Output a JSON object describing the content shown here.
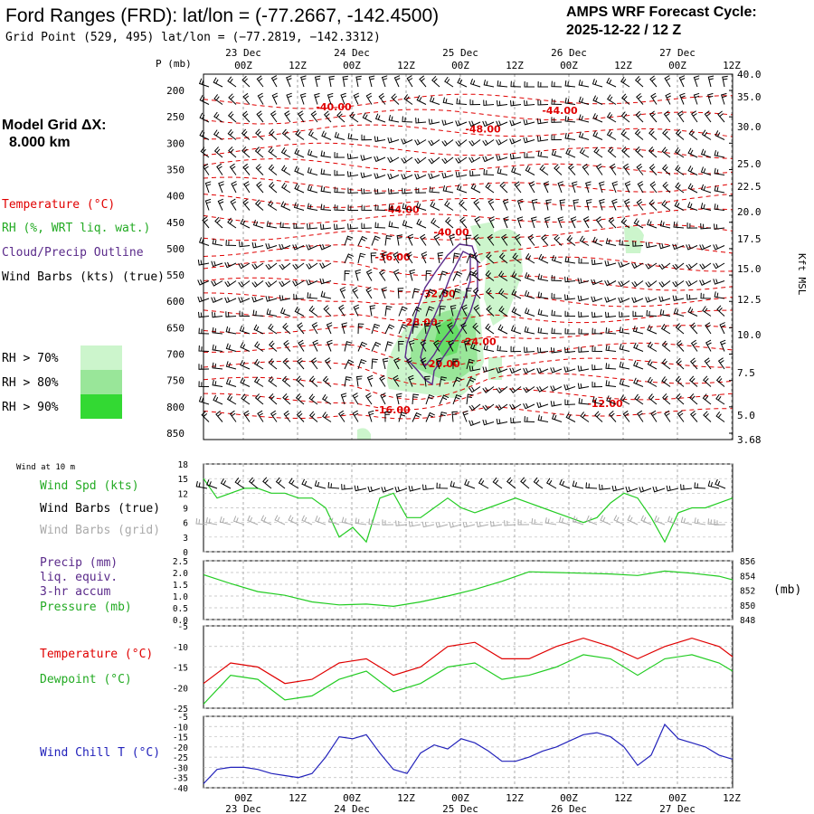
{
  "header": {
    "title": "Ford Ranges (FRD):  lat/lon = (-77.2667, -142.4500)",
    "grid_point": "Grid Point (529, 495) lat/lon = (−77.2819, −142.3312)",
    "cycle_label": "AMPS WRF Forecast Cycle:",
    "cycle_value": "2025-12-22 / 12  Z"
  },
  "left_panel": {
    "model_grid_label": "Model Grid ΔX:",
    "model_grid_value": "8.000 km",
    "legend_temperature": "Temperature (°C)",
    "legend_rh": "RH (%, WRT liq. wat.)",
    "legend_cloud": "Cloud/Precip Outline",
    "legend_wind": "Wind Barbs (kts) (true)",
    "rh_levels": [
      "RH > 70%",
      "RH > 80%",
      "RH > 90%"
    ]
  },
  "colors": {
    "temperature": "#e00000",
    "dewpoint": "#22cc22",
    "cloud": "#5a2a8a",
    "windchill": "#2222bb",
    "rh70": "#ccf5cc",
    "rh80": "#99e699",
    "rh90": "#33d933",
    "grey_barb": "#aaaaaa"
  },
  "time_axis": {
    "top_dates": [
      "23 Dec",
      "24 Dec",
      "25 Dec",
      "26 Dec",
      "27 Dec"
    ],
    "bottom_dates": [
      "23 Dec",
      "24 Dec",
      "25 Dec",
      "26 Dec",
      "27 Dec"
    ],
    "hours": [
      "00Z",
      "12Z",
      "00Z",
      "12Z",
      "00Z",
      "12Z",
      "00Z",
      "12Z",
      "00Z",
      "12Z"
    ]
  },
  "chart_data": [
    {
      "type": "heatmap",
      "name": "cross-section",
      "ylabel": "P (mb)",
      "y2label": "Kft MSL",
      "pressure_ticks": [
        "200",
        "250",
        "300",
        "350",
        "400",
        "450",
        "500",
        "550",
        "600",
        "650",
        "700",
        "750",
        "800",
        "850"
      ],
      "height_ticks": [
        "40.0",
        "35.0",
        "30.0",
        "25.0",
        "22.5",
        "20.0",
        "17.5",
        "15.0",
        "12.5",
        "10.0",
        "7.5",
        "5.0",
        "3.68"
      ],
      "isotherm_labels": [
        {
          "text": "-40.00",
          "t": 20,
          "p": 238
        },
        {
          "text": "-44.00",
          "t": 70,
          "p": 245
        },
        {
          "text": "-48.00",
          "t": 53,
          "p": 280
        },
        {
          "text": "-44.00",
          "t": 35,
          "p": 432
        },
        {
          "text": "-40.00",
          "t": 46,
          "p": 475
        },
        {
          "text": "-36.00",
          "t": 33,
          "p": 522
        },
        {
          "text": "-32.00",
          "t": 43,
          "p": 592
        },
        {
          "text": "-28.00",
          "t": 39,
          "p": 646
        },
        {
          "text": "-24.00",
          "t": 52,
          "p": 683
        },
        {
          "text": "-20.00",
          "t": 44,
          "p": 725
        },
        {
          "text": "-16.00",
          "t": 33,
          "p": 812
        },
        {
          "text": "-12.00",
          "t": 80,
          "p": 800
        }
      ]
    },
    {
      "type": "line",
      "name": "wind-10m",
      "title": "Wind at 10 m",
      "legend": [
        "Wind Spd (kts)",
        "Wind Barbs (true)",
        "Wind Barbs (grid)"
      ],
      "ylim": [
        0,
        18
      ],
      "yticks": [
        "0",
        "3",
        "6",
        "9",
        "12",
        "15",
        "18"
      ],
      "x_hours": [
        0,
        3,
        6,
        9,
        12,
        15,
        18,
        21,
        24,
        27,
        30,
        33,
        36,
        39,
        42,
        45,
        48,
        51,
        54,
        57,
        60,
        63,
        66,
        69,
        72,
        75,
        78,
        81,
        84,
        87,
        90,
        93,
        96,
        99,
        102,
        105,
        108,
        111,
        114,
        117
      ],
      "values": [
        15,
        11,
        12,
        13,
        13,
        12,
        12,
        11,
        11,
        9,
        3,
        5,
        2,
        11,
        12,
        7,
        7,
        9,
        11,
        9,
        8,
        9,
        10,
        11,
        10,
        9,
        8,
        7,
        6,
        7,
        10,
        12,
        11,
        7,
        2,
        8,
        9,
        9,
        10,
        11
      ]
    },
    {
      "type": "line",
      "name": "precip-pressure",
      "legend": [
        "Precip (mm)",
        "liq. equiv.",
        "3-hr accum",
        "Pressure (mb)"
      ],
      "ylim": [
        0,
        2.5
      ],
      "yticks": [
        "0.0",
        "0.5",
        "1.0",
        "1.5",
        "2.0",
        "2.5"
      ],
      "y2lim": [
        848,
        856
      ],
      "y2ticks": [
        "848",
        "850",
        "852",
        "854",
        "856"
      ],
      "y2label": "(mb)",
      "x_hours": [
        0,
        6,
        12,
        18,
        24,
        30,
        36,
        42,
        48,
        54,
        60,
        66,
        72,
        78,
        84,
        90,
        96,
        102,
        108,
        114,
        117
      ],
      "pressure": [
        854.1,
        852.9,
        851.8,
        851.3,
        850.4,
        850.0,
        850.1,
        849.8,
        850.4,
        851.2,
        852.1,
        853.2,
        854.5,
        854.4,
        854.3,
        854.2,
        854.0,
        854.6,
        854.3,
        853.9,
        853.4
      ]
    },
    {
      "type": "line",
      "name": "temperature-dewpoint",
      "legend": [
        "Temperature (°C)",
        "Dewpoint (°C)"
      ],
      "ylim": [
        -25,
        -5
      ],
      "yticks": [
        "-5",
        "-10",
        "-15",
        "-20",
        "-25"
      ],
      "x_hours": [
        0,
        6,
        12,
        18,
        24,
        30,
        36,
        42,
        48,
        54,
        60,
        66,
        72,
        78,
        84,
        90,
        96,
        102,
        108,
        114,
        117
      ],
      "series": [
        {
          "name": "Temperature (°C)",
          "values": [
            -19,
            -14,
            -15,
            -19,
            -18,
            -14,
            -13,
            -17,
            -15,
            -10,
            -9,
            -13,
            -13,
            -10,
            -8,
            -10,
            -13,
            -10,
            -8,
            -10,
            -12.5
          ]
        },
        {
          "name": "Dewpoint (°C)",
          "values": [
            -24,
            -17,
            -18,
            -23,
            -22,
            -18,
            -16,
            -21,
            -19,
            -15,
            -14,
            -18,
            -17,
            -15,
            -12,
            -13,
            -17,
            -13,
            -12,
            -14,
            -16
          ]
        }
      ]
    },
    {
      "type": "line",
      "name": "wind-chill",
      "legend": [
        "Wind Chill T (°C)"
      ],
      "ylim": [
        -40,
        -5
      ],
      "yticks": [
        "-5",
        "-10",
        "-15",
        "-20",
        "-25",
        "-30",
        "-35",
        "-40"
      ],
      "x_hours": [
        0,
        3,
        6,
        9,
        12,
        15,
        18,
        21,
        24,
        27,
        30,
        33,
        36,
        39,
        42,
        45,
        48,
        51,
        54,
        57,
        60,
        63,
        66,
        69,
        72,
        75,
        78,
        81,
        84,
        87,
        90,
        93,
        96,
        99,
        102,
        105,
        108,
        111,
        114,
        117
      ],
      "values": [
        -38,
        -31,
        -30,
        -30,
        -31,
        -33,
        -34,
        -35,
        -33,
        -25,
        -15,
        -16,
        -14,
        -23,
        -31,
        -33,
        -23,
        -19,
        -21,
        -16,
        -18,
        -22,
        -27,
        -27,
        -25,
        -22,
        -20,
        -17,
        -14,
        -13,
        -15,
        -20,
        -29,
        -24,
        -9,
        -16,
        -18,
        -20,
        -24,
        -26
      ]
    }
  ]
}
